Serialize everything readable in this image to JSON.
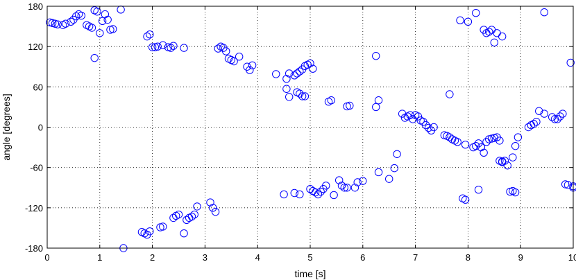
{
  "chart_data": {
    "type": "scatter",
    "xlabel": "time [s]",
    "ylabel": "angle [degrees]",
    "xlim": [
      0,
      10
    ],
    "ylim": [
      -180,
      180
    ],
    "xticks": [
      0,
      1,
      2,
      3,
      4,
      5,
      6,
      7,
      8,
      9,
      10
    ],
    "yticks": [
      -180,
      -120,
      -60,
      0,
      60,
      120,
      180
    ],
    "xtick_labels": [
      "0",
      "1",
      "2",
      "3",
      "4",
      "5",
      "6",
      "7",
      "8",
      "9",
      "10"
    ],
    "ytick_labels": [
      "-180",
      "-120",
      "-60",
      "0",
      "60",
      "120",
      "180"
    ],
    "grid": true,
    "marker": "circle-open",
    "color": "#0000ff",
    "series": [
      {
        "x": [
          0.05,
          0.1,
          0.15,
          0.2,
          0.3,
          0.35,
          0.45,
          0.5,
          0.55,
          0.6,
          0.65,
          0.75,
          0.8,
          0.85,
          0.9,
          0.95,
          1.0,
          1.05,
          1.1,
          1.15,
          1.2,
          1.25,
          0.9,
          1.4,
          1.9,
          1.95,
          2.0,
          2.05,
          2.1,
          2.2,
          2.3,
          2.35,
          2.4,
          2.6,
          3.25,
          3.3,
          3.35,
          3.4,
          3.45,
          3.5,
          3.55,
          3.65,
          3.8,
          3.85,
          3.9,
          4.35,
          4.55,
          4.6,
          4.7,
          4.75,
          4.8,
          4.85,
          4.9,
          4.95,
          5.0,
          5.05,
          4.55,
          4.6,
          4.75,
          4.8,
          4.85,
          4.9,
          5.35,
          5.4,
          5.7,
          5.75,
          6.25,
          6.3,
          6.25,
          6.75,
          6.8,
          6.85,
          6.9,
          6.95,
          7.0,
          7.05,
          7.1,
          7.15,
          7.2,
          7.25,
          7.3,
          7.35,
          7.55,
          7.6,
          7.65,
          7.7,
          7.75,
          7.8,
          7.95,
          8.1,
          8.15,
          8.2,
          8.25,
          8.3,
          8.35,
          8.4,
          8.45,
          8.5,
          8.55,
          8.6,
          8.65,
          8.7,
          8.85,
          8.9,
          8.95,
          9.15,
          9.2,
          9.25,
          9.3,
          9.35,
          9.45,
          9.6,
          9.65,
          9.7,
          9.75,
          9.8,
          7.65,
          7.85,
          8.0,
          8.15,
          8.3,
          8.35,
          8.4,
          8.45,
          8.5,
          8.55,
          8.65,
          8.75,
          9.45,
          9.95,
          1.45,
          1.8,
          1.85,
          1.9,
          1.95,
          2.15,
          2.2,
          2.4,
          2.45,
          2.5,
          2.6,
          2.65,
          2.7,
          2.75,
          2.8,
          2.85,
          3.1,
          3.15,
          3.2,
          4.5,
          4.7,
          4.8,
          5.0,
          5.05,
          5.1,
          5.15,
          5.2,
          5.25,
          5.3,
          5.45,
          5.55,
          5.6,
          5.65,
          5.7,
          5.85,
          5.9,
          6.0,
          6.3,
          6.5,
          6.6,
          6.65,
          7.9,
          7.95,
          8.2,
          8.6,
          8.65,
          8.8,
          8.85,
          8.9,
          9.85,
          9.9,
          10.0,
          10.0
        ],
        "y": [
          156,
          155,
          154,
          153,
          152,
          154,
          157,
          160,
          165,
          168,
          166,
          152,
          150,
          148,
          174,
          172,
          140,
          158,
          168,
          160,
          145,
          146,
          103,
          175,
          135,
          138,
          119,
          119,
          120,
          122,
          119,
          118,
          121,
          118,
          117,
          120,
          118,
          113,
          102,
          100,
          98,
          105,
          90,
          85,
          92,
          79,
          72,
          80,
          77,
          80,
          83,
          86,
          91,
          93,
          95,
          87,
          57,
          45,
          52,
          50,
          46,
          46,
          38,
          40,
          31,
          32,
          106,
          40,
          30,
          20,
          14,
          16,
          18,
          12,
          18,
          16,
          10,
          8,
          3,
          -1,
          -5,
          0,
          -12,
          -13,
          -15,
          -18,
          -20,
          -22,
          -26,
          -30,
          -28,
          -24,
          -30,
          -38,
          -22,
          -18,
          -17,
          -16,
          -15,
          -20,
          -52,
          -50,
          -45,
          -28,
          -15,
          0,
          3,
          5,
          8,
          24,
          20,
          15,
          12,
          12,
          16,
          20,
          49,
          159,
          157,
          170,
          145,
          140,
          142,
          145,
          126,
          140,
          135,
          -57,
          171,
          96,
          -180,
          -156,
          -158,
          -160,
          -155,
          -149,
          -148,
          -135,
          -132,
          -130,
          -158,
          -138,
          -135,
          -133,
          -130,
          -118,
          -112,
          -120,
          -126,
          -100,
          -98,
          -100,
          -92,
          -95,
          -97,
          -100,
          -96,
          -92,
          -87,
          -101,
          -79,
          -87,
          -90,
          -90,
          -90,
          -82,
          -80,
          -67,
          -77,
          -61,
          -40,
          -106,
          -108,
          -93,
          -50,
          -51,
          -96,
          -95,
          -97,
          -85,
          -86,
          -90,
          -88
        ]
      }
    ]
  }
}
